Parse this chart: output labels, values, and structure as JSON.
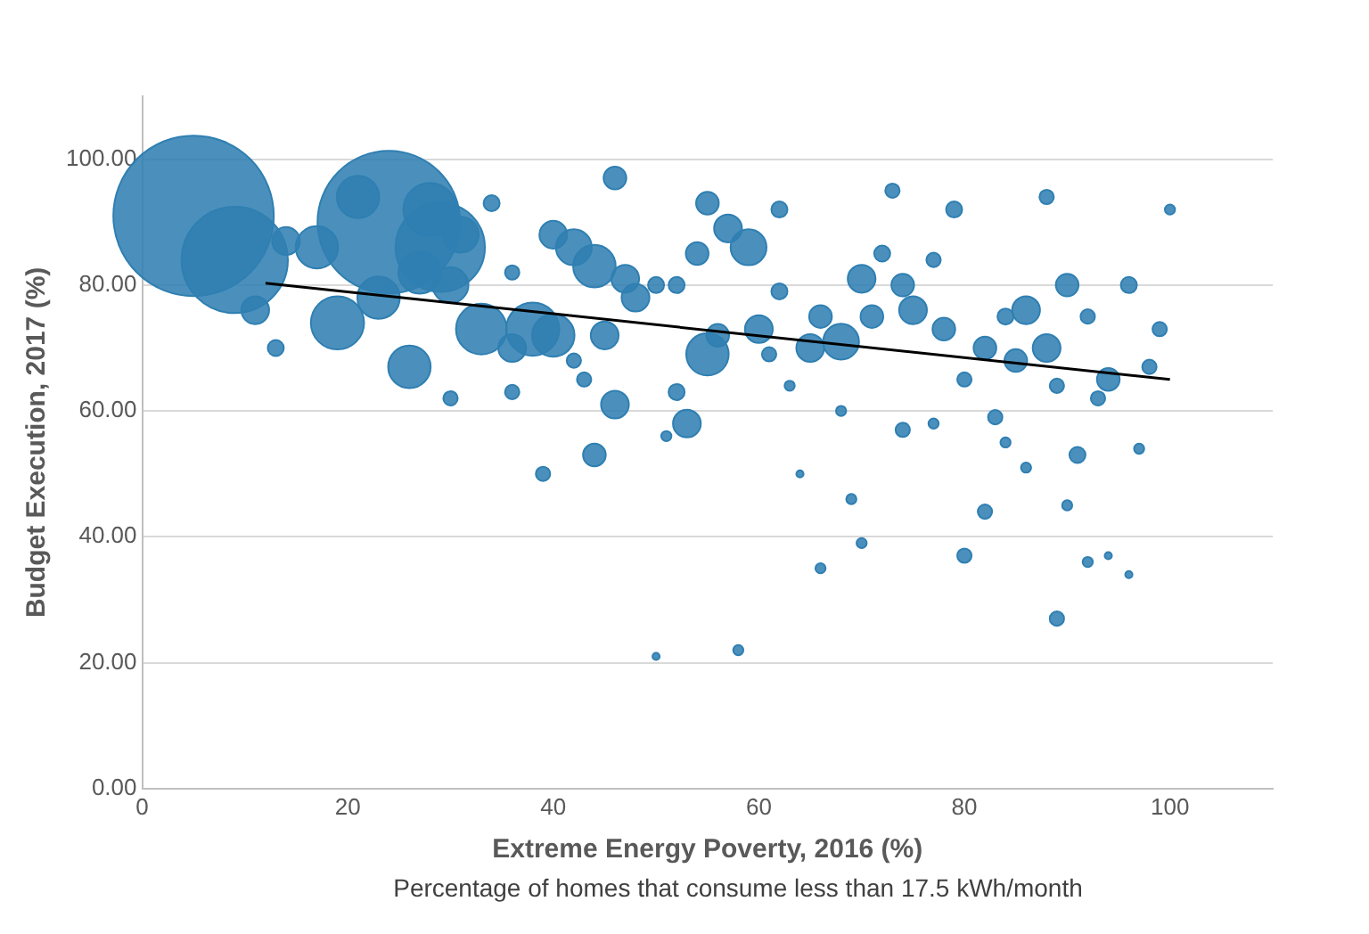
{
  "chart_data": {
    "type": "bubble",
    "xlabel": "Extreme Energy Poverty, 2016 (%)",
    "ylabel": "Budget Execution, 2017 (%)",
    "annotations": [
      "Percentage of homes that consume less than 17.5 kWh/month"
    ],
    "xlim": [
      0,
      110
    ],
    "xticks": [
      0,
      20,
      40,
      60,
      80,
      100
    ],
    "ylim": [
      0,
      110
    ],
    "yticks": [
      {
        "value": 0,
        "label": "0.00"
      },
      {
        "value": 20,
        "label": "20.00"
      },
      {
        "value": 40,
        "label": "40.00"
      },
      {
        "value": 60,
        "label": "60.00"
      },
      {
        "value": 80,
        "label": "80.00"
      },
      {
        "value": 100,
        "label": "100.00"
      }
    ],
    "grid": "y",
    "legend": false,
    "series": [
      {
        "color": "#2f7fb2",
        "x": [
          5,
          9,
          24,
          21,
          29,
          28,
          14,
          19,
          23,
          26,
          33,
          31,
          11,
          13,
          17,
          34,
          27,
          30,
          36,
          38,
          40,
          36,
          40,
          42,
          44,
          47,
          45,
          46,
          44,
          39,
          46,
          48,
          52,
          54,
          55,
          57,
          59,
          55,
          56,
          53,
          52,
          50,
          60,
          62,
          62,
          65,
          66,
          68,
          70,
          71,
          72,
          74,
          75,
          73,
          77,
          79,
          78,
          80,
          82,
          84,
          86,
          85,
          88,
          89,
          90,
          92,
          94,
          93,
          96,
          98,
          100,
          99,
          97,
          88,
          91,
          92,
          89,
          82,
          80,
          86,
          70,
          69,
          66,
          58,
          50,
          64,
          77,
          83,
          84,
          74,
          68,
          63,
          61,
          51,
          43,
          36,
          30,
          42,
          90,
          94,
          96
        ],
        "values": [
          91,
          84,
          90,
          94,
          86,
          92,
          87,
          74,
          78,
          67,
          73,
          88,
          76,
          70,
          86,
          93,
          82,
          80,
          82,
          73,
          72,
          70,
          88,
          86,
          83,
          81,
          72,
          61,
          53,
          50,
          97,
          78,
          80,
          85,
          93,
          89,
          86,
          69,
          72,
          58,
          63,
          80,
          73,
          79,
          92,
          70,
          75,
          71,
          81,
          75,
          85,
          80,
          76,
          95,
          84,
          92,
          73,
          65,
          70,
          75,
          76,
          68,
          70,
          64,
          80,
          75,
          65,
          62,
          80,
          67,
          92,
          73,
          54,
          94,
          53,
          36,
          27,
          44,
          37,
          51,
          39,
          46,
          35,
          22,
          21,
          50,
          58,
          59,
          55,
          57,
          60,
          64,
          69,
          56,
          65,
          63,
          62,
          68,
          45,
          37,
          34
        ],
        "sizes": [
          1,
          0.44,
          0.79,
          0.07,
          0.31,
          0.11,
          0.03,
          0.11,
          0.07,
          0.07,
          0.1,
          0.05,
          0.03,
          0.01,
          0.07,
          0.01,
          0.07,
          0.05,
          0.008,
          0.11,
          0.07,
          0.03,
          0.03,
          0.05,
          0.07,
          0.03,
          0.03,
          0.03,
          0.02,
          0.008,
          0.02,
          0.03,
          0.01,
          0.02,
          0.02,
          0.03,
          0.05,
          0.07,
          0.02,
          0.03,
          0.01,
          0.01,
          0.03,
          0.01,
          0.01,
          0.03,
          0.02,
          0.05,
          0.03,
          0.02,
          0.01,
          0.02,
          0.03,
          0.008,
          0.008,
          0.01,
          0.02,
          0.008,
          0.02,
          0.01,
          0.03,
          0.02,
          0.03,
          0.008,
          0.02,
          0.008,
          0.02,
          0.008,
          0.01,
          0.008,
          0.004,
          0.008,
          0.004,
          0.008,
          0.01,
          0.004,
          0.008,
          0.008,
          0.008,
          0.004,
          0.004,
          0.004,
          0.004,
          0.004,
          0.002,
          0.002,
          0.004,
          0.008,
          0.004,
          0.008,
          0.004,
          0.004,
          0.008,
          0.004,
          0.008,
          0.008,
          0.008,
          0.008,
          0.004,
          0.002,
          0.002
        ]
      },
      {
        "type": "line",
        "color": "#000000",
        "x": [
          12,
          100
        ],
        "values": [
          80.3,
          65
        ]
      }
    ]
  }
}
